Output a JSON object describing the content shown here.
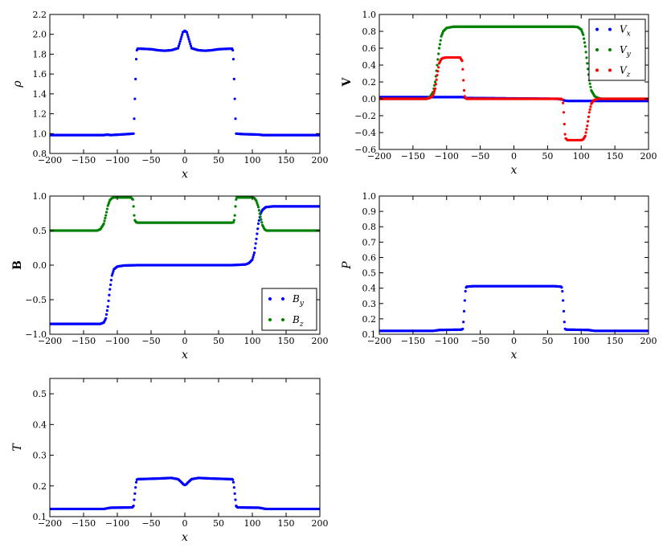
{
  "chart_data": [
    {
      "id": "rho",
      "type": "scatter",
      "title": "",
      "xlabel": "x",
      "ylabel": "ρ",
      "ylabel_bold": false,
      "xlim": [
        -200,
        200
      ],
      "ylim": [
        0.8,
        2.2
      ],
      "xticks": [
        -200,
        -150,
        -100,
        -50,
        0,
        50,
        100,
        150,
        200
      ],
      "yticks": [
        0.8,
        1.0,
        1.2,
        1.4,
        1.6,
        1.8,
        2.0,
        2.2
      ],
      "ytick_decimals": 1,
      "legend": null,
      "series": [
        {
          "color": "#0000ff",
          "x": [
            -200,
            -120,
            -115,
            -110,
            -85,
            -76,
            -75,
            -74,
            -73,
            -72,
            -71,
            -70,
            -65,
            -50,
            -40,
            -30,
            -20,
            -10,
            -6,
            -3,
            0,
            3,
            6,
            10,
            20,
            30,
            40,
            50,
            65,
            70,
            71,
            72,
            73,
            74,
            75,
            76,
            85,
            110,
            115,
            120,
            200
          ],
          "y": [
            0.985,
            0.985,
            0.99,
            0.985,
            0.995,
            1.0,
            1.15,
            1.35,
            1.55,
            1.75,
            1.84,
            1.855,
            1.855,
            1.85,
            1.84,
            1.835,
            1.84,
            1.86,
            1.95,
            2.02,
            2.035,
            2.02,
            1.95,
            1.86,
            1.84,
            1.835,
            1.84,
            1.85,
            1.855,
            1.855,
            1.84,
            1.75,
            1.55,
            1.35,
            1.15,
            1.0,
            0.995,
            0.99,
            0.985,
            0.985,
            0.985
          ]
        }
      ]
    },
    {
      "id": "velocity",
      "type": "scatter",
      "title": "",
      "xlabel": "x",
      "ylabel": "V",
      "ylabel_bold": true,
      "xlim": [
        -200,
        200
      ],
      "ylim": [
        -0.6,
        1.0
      ],
      "xticks": [
        -200,
        -150,
        -100,
        -50,
        0,
        50,
        100,
        150,
        200
      ],
      "yticks": [
        -0.6,
        -0.4,
        -0.2,
        0.0,
        0.2,
        0.4,
        0.6,
        0.8,
        1.0
      ],
      "ytick_decimals": 1,
      "legend": {
        "position": "top-right"
      },
      "series": [
        {
          "name": "V_x",
          "name_main": "V",
          "name_sub": "x",
          "color": "#0000ff",
          "x": [
            -200,
            -75,
            -72,
            65,
            72,
            75,
            80,
            200
          ],
          "y": [
            0.02,
            0.02,
            0.01,
            0.0,
            -0.01,
            -0.02,
            -0.025,
            -0.025
          ]
        },
        {
          "name": "V_y",
          "name_main": "V",
          "name_sub": "y",
          "color": "#008000",
          "x": [
            -200,
            -130,
            -125,
            -120,
            -117,
            -114,
            -111,
            -108,
            -105,
            -100,
            -90,
            0,
            90,
            95,
            100,
            103,
            106,
            109,
            112,
            115,
            120,
            125,
            130,
            200
          ],
          "y": [
            0.0,
            0.0,
            0.02,
            0.08,
            0.2,
            0.4,
            0.6,
            0.74,
            0.8,
            0.84,
            0.855,
            0.855,
            0.855,
            0.85,
            0.82,
            0.76,
            0.62,
            0.42,
            0.22,
            0.1,
            0.03,
            0.01,
            0.0,
            0.0
          ]
        },
        {
          "name": "V_z",
          "name_main": "V",
          "name_sub": "z",
          "color": "#ff0000",
          "x": [
            -200,
            -130,
            -125,
            -120,
            -117,
            -114,
            -111,
            -108,
            -105,
            -100,
            -80,
            -77,
            -76,
            -75,
            -74,
            -73,
            -72,
            -70,
            0,
            70,
            72,
            73,
            74,
            75,
            76,
            77,
            80,
            100,
            103,
            106,
            109,
            112,
            115,
            118,
            121,
            125,
            130,
            200
          ],
          "y": [
            0.0,
            0.0,
            0.01,
            0.04,
            0.12,
            0.28,
            0.42,
            0.47,
            0.485,
            0.49,
            0.49,
            0.45,
            0.35,
            0.22,
            0.1,
            0.03,
            0.01,
            0.0,
            0.0,
            0.0,
            -0.01,
            -0.05,
            -0.16,
            -0.3,
            -0.42,
            -0.47,
            -0.49,
            -0.49,
            -0.48,
            -0.44,
            -0.32,
            -0.16,
            -0.06,
            -0.02,
            -0.01,
            0.0,
            0.0,
            0.0
          ]
        }
      ]
    },
    {
      "id": "magnetic",
      "type": "scatter",
      "title": "",
      "xlabel": "x",
      "ylabel": "B",
      "ylabel_bold": true,
      "xlim": [
        -200,
        200
      ],
      "ylim": [
        -1.0,
        1.0
      ],
      "xticks": [
        -200,
        -150,
        -100,
        -50,
        0,
        50,
        100,
        150,
        200
      ],
      "yticks": [
        -1.0,
        -0.5,
        0.0,
        0.5,
        1.0
      ],
      "ytick_decimals": 1,
      "legend": {
        "position": "bottom-right"
      },
      "series": [
        {
          "name": "B_y",
          "name_main": "B",
          "name_sub": "y",
          "color": "#0000ff",
          "x": [
            -200,
            -125,
            -120,
            -117,
            -114,
            -111,
            -108,
            -105,
            -100,
            -90,
            -70,
            0,
            70,
            90,
            95,
            100,
            103,
            106,
            109,
            112,
            115,
            120,
            130,
            200
          ],
          "y": [
            -0.85,
            -0.85,
            -0.83,
            -0.77,
            -0.6,
            -0.35,
            -0.15,
            -0.06,
            -0.02,
            -0.005,
            0.0,
            0.0,
            0.0,
            0.01,
            0.03,
            0.08,
            0.18,
            0.38,
            0.6,
            0.74,
            0.8,
            0.84,
            0.85,
            0.85
          ]
        },
        {
          "name": "B_z",
          "name_main": "B",
          "name_sub": "z",
          "color": "#008000",
          "x": [
            -200,
            -130,
            -125,
            -120,
            -117,
            -114,
            -111,
            -108,
            -105,
            -80,
            -77,
            -76,
            -75,
            -74,
            -72,
            -70,
            0,
            70,
            72,
            73,
            74,
            75,
            76,
            77,
            80,
            100,
            103,
            106,
            109,
            112,
            115,
            118,
            121,
            125,
            130,
            200
          ],
          "y": [
            0.5,
            0.5,
            0.52,
            0.6,
            0.72,
            0.86,
            0.94,
            0.97,
            0.98,
            0.98,
            0.95,
            0.85,
            0.72,
            0.65,
            0.62,
            0.615,
            0.615,
            0.615,
            0.62,
            0.65,
            0.72,
            0.85,
            0.95,
            0.98,
            0.98,
            0.98,
            0.97,
            0.93,
            0.84,
            0.7,
            0.58,
            0.52,
            0.5,
            0.5,
            0.5,
            0.5
          ]
        }
      ]
    },
    {
      "id": "pressure",
      "type": "scatter",
      "title": "",
      "xlabel": "x",
      "ylabel": "P",
      "ylabel_bold": false,
      "xlim": [
        -200,
        200
      ],
      "ylim": [
        0.1,
        1.0
      ],
      "xticks": [
        -200,
        -150,
        -100,
        -50,
        0,
        50,
        100,
        150,
        200
      ],
      "yticks": [
        0.1,
        0.2,
        0.3,
        0.4,
        0.5,
        0.6,
        0.7,
        0.8,
        0.9,
        1.0
      ],
      "ytick_decimals": 1,
      "legend": null,
      "series": [
        {
          "color": "#0000ff",
          "x": [
            -200,
            -120,
            -115,
            -110,
            -78,
            -76,
            -75,
            -74,
            -73,
            -72,
            -71,
            -70,
            -60,
            0,
            60,
            70,
            71,
            72,
            73,
            74,
            75,
            76,
            78,
            110,
            115,
            120,
            200
          ],
          "y": [
            0.122,
            0.122,
            0.125,
            0.128,
            0.13,
            0.135,
            0.18,
            0.25,
            0.32,
            0.38,
            0.405,
            0.41,
            0.413,
            0.413,
            0.413,
            0.41,
            0.405,
            0.38,
            0.32,
            0.25,
            0.18,
            0.135,
            0.13,
            0.128,
            0.125,
            0.122,
            0.122
          ]
        }
      ]
    },
    {
      "id": "temperature",
      "type": "scatter",
      "title": "",
      "xlabel": "x",
      "ylabel": "T",
      "ylabel_bold": false,
      "xlim": [
        -200,
        200
      ],
      "ylim": [
        0.1,
        0.55
      ],
      "xticks": [
        -200,
        -150,
        -100,
        -50,
        0,
        50,
        100,
        150,
        200
      ],
      "yticks": [
        0.1,
        0.2,
        0.3,
        0.4,
        0.5
      ],
      "ytick_decimals": 1,
      "legend": null,
      "series": [
        {
          "color": "#0000ff",
          "x": [
            -200,
            -120,
            -115,
            -110,
            -78,
            -76,
            -75,
            -74,
            -73,
            -72,
            -71,
            -70,
            -40,
            -20,
            -10,
            -5,
            -2,
            0,
            2,
            5,
            10,
            20,
            40,
            70,
            71,
            72,
            73,
            74,
            75,
            76,
            78,
            110,
            115,
            120,
            200
          ],
          "y": [
            0.125,
            0.125,
            0.127,
            0.129,
            0.13,
            0.135,
            0.155,
            0.175,
            0.195,
            0.212,
            0.22,
            0.222,
            0.224,
            0.226,
            0.222,
            0.212,
            0.205,
            0.203,
            0.205,
            0.212,
            0.222,
            0.226,
            0.224,
            0.222,
            0.22,
            0.212,
            0.195,
            0.175,
            0.155,
            0.135,
            0.13,
            0.129,
            0.127,
            0.125,
            0.125
          ]
        }
      ]
    }
  ]
}
